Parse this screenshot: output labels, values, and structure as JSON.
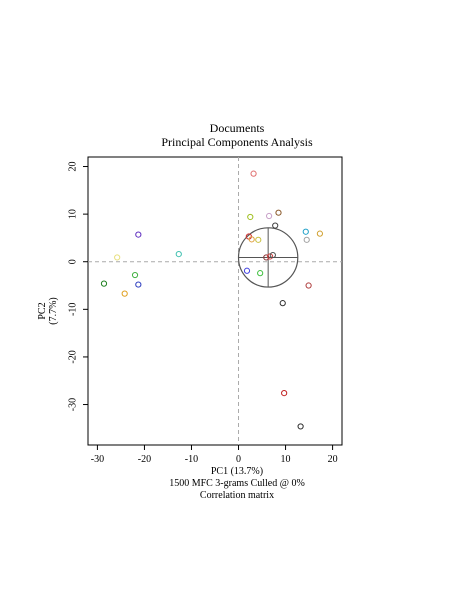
{
  "chart_data": {
    "type": "scatter",
    "title": "Documents",
    "subtitle": "Principal Components Analysis",
    "xlabel": "PC1 (13.7%)",
    "ylabel": "PC2 (7.7%)",
    "caption_line1": "1500 MFC 3-grams Culled @ 0%",
    "caption_line2": "Correlation matrix",
    "xlim": [
      -32,
      22
    ],
    "ylim": [
      -38.5,
      22
    ],
    "x_ticks": [
      -30,
      -20,
      -10,
      0,
      10,
      20
    ],
    "x_tick_labels": [
      "-30",
      "-20",
      "-10",
      "0",
      "10",
      "20"
    ],
    "y_ticks": [
      -30,
      -20,
      -10,
      0,
      10,
      20
    ],
    "y_tick_labels": [
      "-30",
      "-20",
      "-10",
      "0",
      "10",
      "20"
    ],
    "grid": false,
    "reference_lines": {
      "x": 0,
      "y": 0,
      "style": "dashed",
      "color": "#aaaaaa"
    },
    "loadings_circle": {
      "center_x": 6.3,
      "center_y": 0.9,
      "radius_x": 6.3,
      "crosshair": true
    },
    "points": [
      {
        "x": 3.2,
        "y": 18.5,
        "color": "#e07070"
      },
      {
        "x": 2.5,
        "y": 9.4,
        "color": "#a0c020"
      },
      {
        "x": 6.5,
        "y": 9.6,
        "color": "#c8a0c8"
      },
      {
        "x": 8.5,
        "y": 10.3,
        "color": "#8b5a2b"
      },
      {
        "x": 7.8,
        "y": 7.6,
        "color": "#404040"
      },
      {
        "x": 2.2,
        "y": 5.3,
        "color": "#d03030"
      },
      {
        "x": 2.8,
        "y": 4.7,
        "color": "#e0a040"
      },
      {
        "x": 4.2,
        "y": 4.6,
        "color": "#c8c040"
      },
      {
        "x": 14.3,
        "y": 6.3,
        "color": "#20a0c8"
      },
      {
        "x": 17.3,
        "y": 5.9,
        "color": "#d0a030"
      },
      {
        "x": 14.5,
        "y": 4.6,
        "color": "#a0a0a0"
      },
      {
        "x": 1.8,
        "y": -1.9,
        "color": "#4040e0"
      },
      {
        "x": 4.6,
        "y": -2.4,
        "color": "#40c040"
      },
      {
        "x": 5.9,
        "y": 0.9,
        "color": "#8b3a3a"
      },
      {
        "x": 6.7,
        "y": 1.1,
        "color": "#d04040"
      },
      {
        "x": 7.3,
        "y": 1.4,
        "color": "#505050"
      },
      {
        "x": 9.4,
        "y": -8.7,
        "color": "#303030"
      },
      {
        "x": 14.9,
        "y": -5.0,
        "color": "#b04040"
      },
      {
        "x": 9.7,
        "y": -27.6,
        "color": "#c02020"
      },
      {
        "x": 13.2,
        "y": -34.6,
        "color": "#303030"
      },
      {
        "x": -21.3,
        "y": 5.7,
        "color": "#6030c0"
      },
      {
        "x": -12.7,
        "y": 1.6,
        "color": "#40c0b0"
      },
      {
        "x": -25.8,
        "y": 0.9,
        "color": "#e8e080"
      },
      {
        "x": -22.0,
        "y": -2.8,
        "color": "#40b040"
      },
      {
        "x": -28.6,
        "y": -4.6,
        "color": "#208020"
      },
      {
        "x": -21.3,
        "y": -4.8,
        "color": "#3040c0"
      },
      {
        "x": -24.2,
        "y": -6.7,
        "color": "#e0a020"
      }
    ]
  }
}
